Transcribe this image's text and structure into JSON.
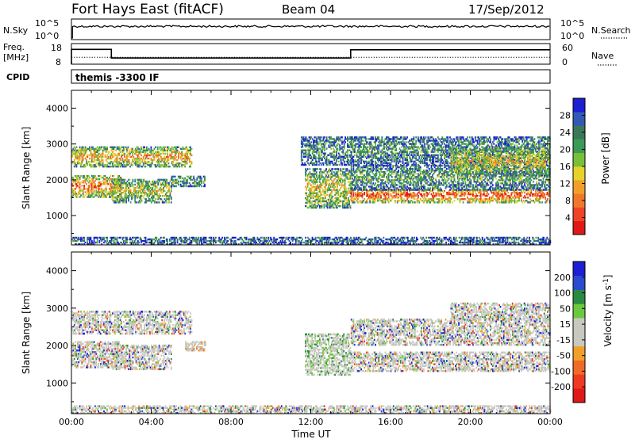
{
  "header": {
    "station": "Fort Hays East (fitACF)",
    "beam": "Beam 04",
    "date": "17/Sep/2012"
  },
  "chart_data": [
    {
      "type": "line",
      "panel": "noise",
      "left_label": "N.Sky",
      "right_label": "N.Search",
      "left_ticks": [
        "10^5",
        "10^0"
      ],
      "right_ticks": [
        "10^5",
        "10^0"
      ],
      "series": [
        {
          "name": "N.Sky",
          "style": "solid",
          "level": "near 10^5 (top), flat all day"
        },
        {
          "name": "N.Search",
          "style": "dotted",
          "level": "near 10^5 (top)"
        }
      ]
    },
    {
      "type": "line",
      "panel": "frequency",
      "left_label_line1": "Freq.",
      "left_label_line2": "[MHz]",
      "right_label": "Nave",
      "left_ticks": [
        18,
        8
      ],
      "right_ticks": [
        60,
        0
      ],
      "series": [
        {
          "name": "Freq.",
          "style": "solid",
          "points": [
            [
              0.0,
              15.2
            ],
            [
              2.0,
              15.2
            ],
            [
              2.0,
              11.0
            ],
            [
              14.0,
              11.0
            ],
            [
              14.0,
              15.0
            ],
            [
              24.0,
              15.0
            ]
          ]
        },
        {
          "name": "Nave",
          "style": "dotted",
          "points": [
            [
              0.0,
              20
            ],
            [
              24.0,
              20
            ]
          ]
        }
      ]
    },
    {
      "type": "heatmap",
      "panel": "power",
      "cpid_label": "CPID",
      "cpid_text": "themis -3300 IF",
      "ylabel": "Slant Range [km]",
      "yticks": [
        1000,
        2000,
        3000,
        4000
      ],
      "ylim": [
        180,
        4500
      ],
      "colorbar_label": "Power [dB]",
      "colorbar_ticks": [
        4,
        8,
        12,
        16,
        20,
        24,
        28
      ],
      "colorbar_colors": [
        "#1e1ed2",
        "#325ab4",
        "#3c7858",
        "#3a9a56",
        "#78c03a",
        "#e6d22a",
        "#f0a028",
        "#f0782a",
        "#ee4426",
        "#e01818"
      ],
      "clim": [
        0,
        32
      ],
      "scatter_bands": [
        {
          "t0": 0.0,
          "t1": 6.0,
          "r0": 2350,
          "r1": 2900,
          "level": 0.7
        },
        {
          "t0": 0.0,
          "t1": 2.5,
          "r0": 1500,
          "r1": 2100,
          "level": 0.85
        },
        {
          "t0": 2.0,
          "t1": 5.0,
          "r0": 1350,
          "r1": 2000,
          "level": 0.55
        },
        {
          "t0": 5.0,
          "t1": 6.7,
          "r0": 1800,
          "r1": 2100,
          "level": 0.35
        },
        {
          "t0": 11.7,
          "t1": 14.0,
          "r0": 1200,
          "r1": 2300,
          "level": 0.6
        },
        {
          "t0": 11.5,
          "t1": 14.0,
          "r0": 2400,
          "r1": 3200,
          "level": 0.3
        },
        {
          "t0": 14.0,
          "t1": 24.0,
          "r0": 1350,
          "r1": 1750,
          "level": 0.95
        },
        {
          "t0": 14.0,
          "t1": 24.0,
          "r0": 1700,
          "r1": 2400,
          "level": 0.35
        },
        {
          "t0": 14.0,
          "t1": 24.0,
          "r0": 2400,
          "r1": 3200,
          "level": 0.3
        },
        {
          "t0": 19.0,
          "t1": 24.0,
          "r0": 2100,
          "r1": 2900,
          "level": 0.6
        },
        {
          "t0": 0.0,
          "t1": 24.0,
          "r0": 180,
          "r1": 380,
          "level": 0.2
        }
      ]
    },
    {
      "type": "heatmap",
      "panel": "velocity",
      "ylabel": "Slant Range [km]",
      "yticks": [
        1000,
        2000,
        3000,
        4000
      ],
      "ylim": [
        180,
        4500
      ],
      "colorbar_label": "Velocity [m s^-1]",
      "colorbar_ticks": [
        200,
        100,
        50,
        15,
        -15,
        -50,
        -100,
        -200
      ],
      "colorbar_colors": [
        "#1e1ed2",
        "#2a4ad0",
        "#2a8a44",
        "#6cc83c",
        "#c8c8c0",
        "#c8c8c0",
        "#f0a028",
        "#f06a28",
        "#ee3a22",
        "#e01818"
      ],
      "clim": [
        -250,
        250
      ],
      "scatter_bands": [
        {
          "t0": 0.0,
          "t1": 6.0,
          "r0": 2300,
          "r1": 2900,
          "level": 0.5
        },
        {
          "t0": 0.0,
          "t1": 2.5,
          "r0": 1400,
          "r1": 2100,
          "level": 0.5
        },
        {
          "t0": 2.0,
          "t1": 5.0,
          "r0": 1350,
          "r1": 2000,
          "level": 0.5
        },
        {
          "t0": 5.7,
          "t1": 6.7,
          "r0": 1850,
          "r1": 2100,
          "level": 0.8
        },
        {
          "t0": 11.7,
          "t1": 14.0,
          "r0": 1200,
          "r1": 2300,
          "level": 0.3
        },
        {
          "t0": 14.0,
          "t1": 24.0,
          "r0": 1300,
          "r1": 1800,
          "level": 0.5
        },
        {
          "t0": 14.0,
          "t1": 24.0,
          "r0": 2000,
          "r1": 2700,
          "level": 0.5
        },
        {
          "t0": 19.0,
          "t1": 24.0,
          "r0": 2700,
          "r1": 3150,
          "level": 0.62
        },
        {
          "t0": 0.0,
          "t1": 24.0,
          "r0": 180,
          "r1": 380,
          "level": 0.7
        }
      ]
    }
  ],
  "xaxis": {
    "label": "Time UT",
    "xlim": [
      0,
      24
    ],
    "ticks": [
      0,
      4,
      8,
      12,
      16,
      20,
      24
    ],
    "tick_labels": [
      "00:00",
      "04:00",
      "08:00",
      "12:00",
      "16:00",
      "20:00",
      "00:00"
    ]
  }
}
